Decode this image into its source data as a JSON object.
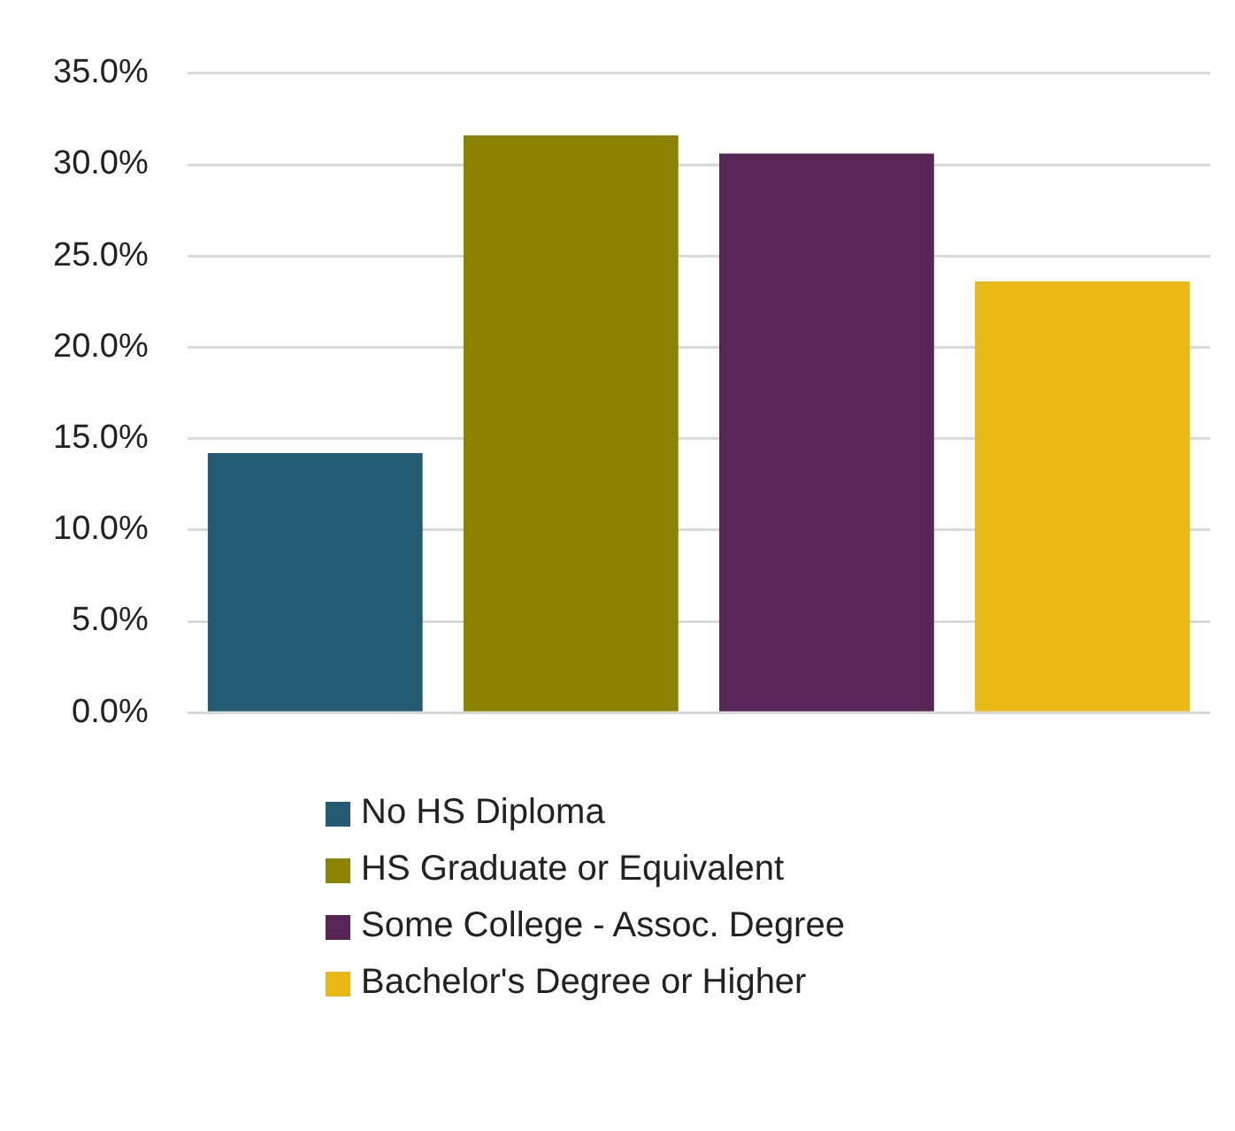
{
  "chart_data": {
    "type": "bar",
    "categories": [
      null,
      null,
      null,
      null
    ],
    "series": [
      {
        "name": "No HS Diploma",
        "color": "#245b73",
        "values": [
          14.2,
          null,
          null,
          null
        ]
      },
      {
        "name": "HS Graduate or Equivalent",
        "color": "#8c8300",
        "values": [
          null,
          31.6,
          null,
          null
        ]
      },
      {
        "name": "Some College - Assoc. Degree",
        "color": "#572657",
        "values": [
          null,
          null,
          30.6,
          null
        ]
      },
      {
        "name": "Bachelor's Degree or Higher",
        "color": "#e8b817",
        "values": [
          null,
          null,
          null,
          23.6
        ]
      }
    ],
    "ylim": [
      0,
      35
    ],
    "yticks": [
      {
        "value": 0,
        "label": "0.0%"
      },
      {
        "value": 5,
        "label": "5.0%"
      },
      {
        "value": 10,
        "label": "10.0%"
      },
      {
        "value": 15,
        "label": "15.0%"
      },
      {
        "value": 20,
        "label": "20.0%"
      },
      {
        "value": 25,
        "label": "25.0%"
      },
      {
        "value": 30,
        "label": "30.0%"
      },
      {
        "value": 35,
        "label": "35.0%"
      }
    ],
    "grid": "y",
    "legend": "bottom"
  }
}
